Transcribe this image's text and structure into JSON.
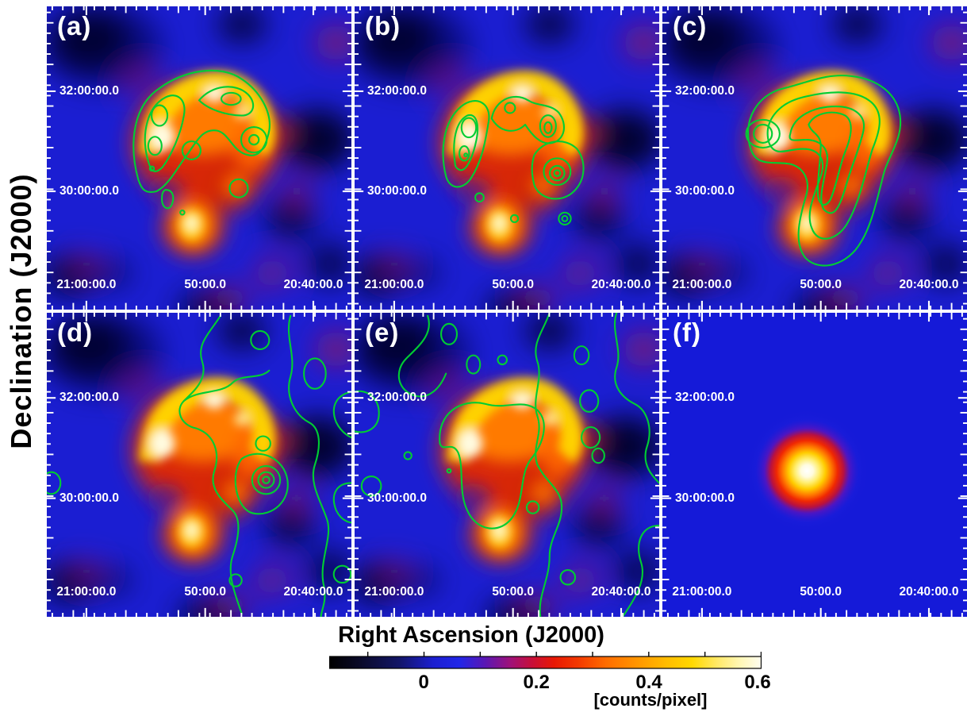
{
  "panels": [
    {
      "id": "a",
      "label": "(a)",
      "contours": "dense nested green contours tracing the bright northern rim of the shell"
    },
    {
      "id": "b",
      "label": "(b)",
      "contours": "clumpy nested green contours on the eastern and western limbs of the shell"
    },
    {
      "id": "c",
      "label": "(c)",
      "contours": "broad smooth nested green contours wrapping from the shell top down its southwest side"
    },
    {
      "id": "d",
      "label": "(d)",
      "contours": "sparse wiggly green contours over the western half with a small bullseye west of the shell"
    },
    {
      "id": "e",
      "label": "(e)",
      "contours": "extended sprawling green contours covering most of the field"
    },
    {
      "id": "f",
      "label": "(f)",
      "contours": "no contours; smooth centrally peaked point-like source"
    }
  ],
  "axes": {
    "x_title": "Right Ascension (J2000)",
    "y_title": "Declination (J2000)",
    "x_ticks": [
      {
        "label": "21:00:00.0"
      },
      {
        "label": "50:00.0"
      },
      {
        "label": "20:40:00.0"
      }
    ],
    "y_ticks": [
      {
        "label": "32:00:00.0"
      },
      {
        "label": "30:00:00.0"
      }
    ]
  },
  "colorbar": {
    "unit": "[counts/pixel]",
    "ticks": [
      {
        "label": "0",
        "value": 0
      },
      {
        "label": "0.2",
        "value": 0.2
      },
      {
        "label": "0.4",
        "value": 0.4
      },
      {
        "label": "0.6",
        "value": 0.6
      }
    ],
    "range": [
      -0.168,
      0.6
    ],
    "minor_tick_values": [
      -0.1,
      0,
      0.1,
      0.2,
      0.3,
      0.4,
      0.5,
      0.6
    ],
    "gradient_stops": [
      [
        0,
        "#000000"
      ],
      [
        0.07,
        "#0a0a28"
      ],
      [
        0.16,
        "#121566"
      ],
      [
        0.24,
        "#1c1fd0"
      ],
      [
        0.3,
        "#2126e8"
      ],
      [
        0.36,
        "#5a17b4"
      ],
      [
        0.42,
        "#a01178"
      ],
      [
        0.47,
        "#c80f38"
      ],
      [
        0.52,
        "#e81804"
      ],
      [
        0.58,
        "#f43c00"
      ],
      [
        0.64,
        "#ff6c00"
      ],
      [
        0.71,
        "#ff9400"
      ],
      [
        0.78,
        "#ffbc00"
      ],
      [
        0.84,
        "#ffd800"
      ],
      [
        0.9,
        "#ffe96a"
      ],
      [
        0.95,
        "#fff7b4"
      ],
      [
        1,
        "#fffdf0"
      ]
    ]
  },
  "colors": {
    "map_background_blue": "#1b1ed2",
    "contour_green": "#00cd33",
    "axis_tick_white": "#ffffff",
    "figure_background": "#ffffff",
    "text_black": "#000000"
  },
  "chart_data": {
    "type": "heatmap",
    "layout": "2x3 grid of sky maps; panels (a)-(e) show the same smoothed photon count image with different green contour overlays; panel (f) shows a smooth point-source profile on a flat blue background",
    "xlabel": "Right Ascension (J2000)",
    "ylabel": "Declination (J2000)",
    "x_tick_labels": [
      "21:00:00.0",
      "50:00.0",
      "20:40:00.0"
    ],
    "y_tick_labels": [
      "32:00:00.0",
      "30:00:00.0"
    ],
    "colorbar": {
      "label": "[counts/pixel]",
      "tick_labels": [
        0,
        0.2,
        0.4,
        0.6
      ],
      "range_estimate": [
        -0.168,
        0.6
      ]
    },
    "panel_labels": [
      "(a)",
      "(b)",
      "(c)",
      "(d)",
      "(e)",
      "(f)"
    ],
    "image_features": {
      "shell": "incomplete bright ring (horseshoe) of emission centered near RA 20:50:00, Dec 31:20:00, opening toward the south",
      "west_rim_hotspot": "brightest knot on the western rim, about 0.55-0.6 counts/pixel (white)",
      "north_rim": "yellow arc along the northern rim, about 0.4-0.5 counts/pixel",
      "southern_blob": "secondary bright knot near RA 20:50:00 Dec 29:40:00, about 0.45 counts/pixel",
      "background": "mottled blue field near 0.0-0.1 counts/pixel with dark minima near -0.1",
      "panel_f_source": "single Gaussian-like point source centered near RA 20:50:00 Dec 30:40:00 peaking near 0.6 counts/pixel"
    }
  }
}
